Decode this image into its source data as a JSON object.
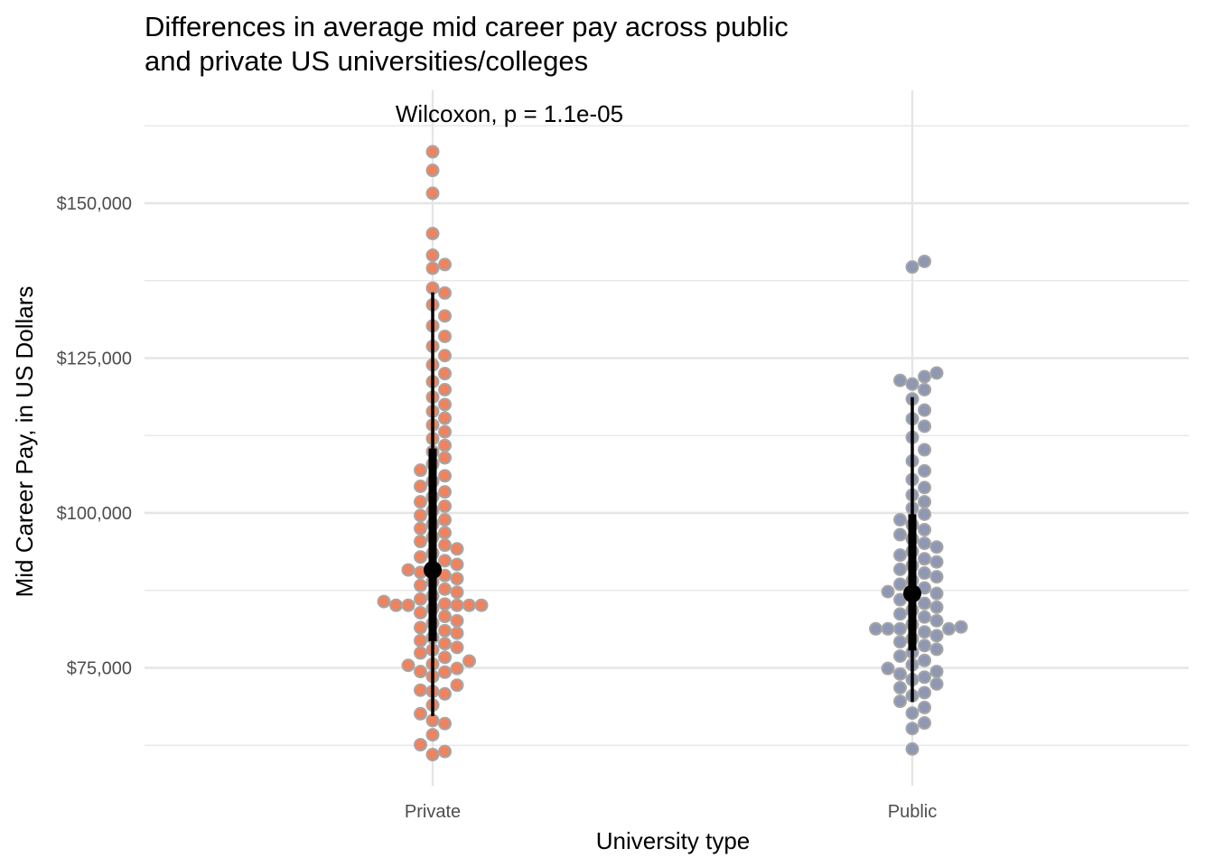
{
  "chart_data": {
    "type": "scatter",
    "subtype": "beeswarm",
    "title_lines": [
      "Differences in average mid career pay across public",
      "and private US universities/colleges"
    ],
    "xlabel": "University type",
    "ylabel": "Mid Career Pay, in US Dollars",
    "categories": [
      "Private",
      "Public"
    ],
    "y_ticks": [
      75000,
      100000,
      125000,
      150000
    ],
    "y_tick_labels": [
      "$75,000",
      "$100,000",
      "$125,000",
      "$150,000"
    ],
    "ylim": [
      57000,
      164000
    ],
    "grid": true,
    "annotation": "Wilcoxon, p = 1.1e-05",
    "colors": {
      "Private": "#f0825d",
      "Public": "#8e97b3",
      "point_stroke": "#a6a6a6",
      "summary": "#000000",
      "grid": "#e5e5e5"
    },
    "summary": [
      {
        "category": "Private",
        "median": 90800,
        "q1": 79300,
        "q3": 110400,
        "lower": 67200,
        "upper": 135600
      },
      {
        "category": "Public",
        "median": 87000,
        "q1": 77800,
        "q3": 99800,
        "lower": 69500,
        "upper": 118700
      }
    ],
    "series": [
      {
        "name": "Private",
        "values": [
          61000,
          61500,
          62600,
          64200,
          66000,
          66500,
          67600,
          69000,
          70800,
          71200,
          71400,
          72200,
          73600,
          74300,
          74400,
          74900,
          75400,
          75600,
          76100,
          76700,
          77400,
          77900,
          78300,
          78900,
          79400,
          79900,
          80600,
          81000,
          81500,
          82200,
          82600,
          83300,
          83900,
          84600,
          85100,
          85100,
          85100,
          85100,
          85100,
          85300,
          85700,
          86100,
          86600,
          87200,
          87700,
          88300,
          88900,
          89400,
          89900,
          90400,
          90800,
          91200,
          91700,
          92300,
          92900,
          93500,
          94200,
          94800,
          95400,
          96100,
          96800,
          97500,
          98200,
          98900,
          99600,
          100400,
          101100,
          101800,
          102600,
          103400,
          104300,
          105100,
          106000,
          106900,
          107900,
          108900,
          109900,
          110900,
          112000,
          113100,
          114200,
          115300,
          116400,
          117500,
          118700,
          119900,
          121200,
          122500,
          123900,
          125400,
          126900,
          128500,
          130200,
          131800,
          133600,
          135500,
          136300,
          139500,
          140100,
          141600,
          145100,
          151600,
          155300,
          158300
        ]
      },
      {
        "name": "Public",
        "values": [
          61900,
          65200,
          66100,
          67700,
          68600,
          69600,
          70500,
          71000,
          71800,
          72400,
          73100,
          73500,
          74000,
          74400,
          74900,
          75500,
          76200,
          76900,
          77500,
          78000,
          78600,
          79200,
          79700,
          80200,
          80800,
          81300,
          81300,
          81300,
          81300,
          81600,
          82000,
          82600,
          83200,
          83700,
          84300,
          84800,
          85400,
          86000,
          86600,
          87000,
          87300,
          87900,
          88500,
          89100,
          89700,
          90300,
          90900,
          91500,
          92100,
          92600,
          93200,
          93800,
          94500,
          95100,
          95800,
          96500,
          97300,
          98100,
          98900,
          99800,
          100800,
          101800,
          102900,
          104100,
          105400,
          106800,
          108400,
          110200,
          112200,
          114000,
          115200,
          116600,
          118400,
          119900,
          120800,
          121400,
          122000,
          122600,
          139700,
          140600
        ]
      }
    ]
  }
}
